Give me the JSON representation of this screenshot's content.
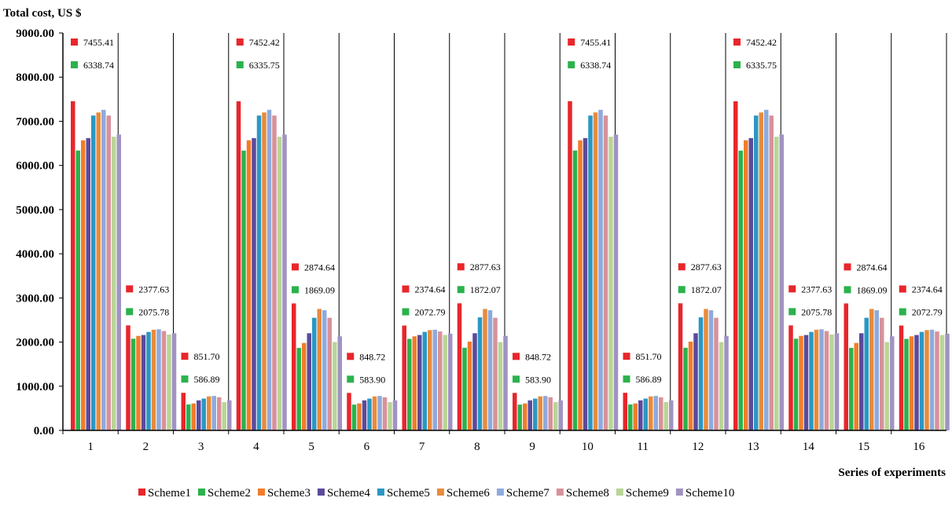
{
  "chart_data": {
    "type": "bar",
    "ylabel": "Total cost, US $",
    "xlabel": "Series of experiments",
    "ylim": [
      0,
      9000
    ],
    "yticks": [
      "0.00",
      "1000.00",
      "2000.00",
      "3000.00",
      "4000.00",
      "5000.00",
      "6000.00",
      "7000.00",
      "8000.00",
      "9000.00"
    ],
    "categories": [
      "1",
      "2",
      "3",
      "4",
      "5",
      "6",
      "7",
      "8",
      "9",
      "10",
      "11",
      "12",
      "13",
      "14",
      "15",
      "16"
    ],
    "grid": "vertical separators between series",
    "legend_position": "bottom",
    "series": [
      {
        "name": "Scheme1",
        "color": "#e8262b",
        "values": [
          7455.41,
          2377.63,
          851.7,
          7452.42,
          2874.64,
          848.72,
          2374.64,
          2877.63,
          848.72,
          7455.41,
          851.7,
          2877.63,
          7452.42,
          2377.63,
          2874.64,
          2374.64
        ]
      },
      {
        "name": "Scheme2",
        "color": "#2bb24c",
        "values": [
          6338.74,
          2075.78,
          586.89,
          6335.75,
          1869.09,
          583.9,
          2072.79,
          1872.07,
          583.9,
          6338.74,
          586.89,
          1872.07,
          6335.75,
          2075.78,
          1869.09,
          2072.79
        ]
      },
      {
        "name": "Scheme3",
        "color": "#f07d2a",
        "values": [
          6570,
          2140,
          610,
          6570,
          1980,
          610,
          2130,
          2010,
          610,
          6570,
          610,
          2010,
          6570,
          2140,
          1980,
          2130
        ]
      },
      {
        "name": "Scheme4",
        "color": "#5b4a9b",
        "values": [
          6620,
          2160,
          680,
          6620,
          2200,
          680,
          2160,
          2200,
          680,
          6620,
          680,
          2200,
          6620,
          2160,
          2200,
          2160
        ]
      },
      {
        "name": "Scheme5",
        "color": "#2a98c4",
        "values": [
          7130,
          2230,
          720,
          7130,
          2550,
          720,
          2230,
          2560,
          720,
          7130,
          720,
          2560,
          7130,
          2230,
          2550,
          2230
        ]
      },
      {
        "name": "Scheme6",
        "color": "#e88b3c",
        "values": [
          7200,
          2280,
          770,
          7200,
          2750,
          770,
          2270,
          2750,
          770,
          7200,
          770,
          2750,
          7200,
          2280,
          2750,
          2270
        ]
      },
      {
        "name": "Scheme7",
        "color": "#8eaadc",
        "values": [
          7260,
          2290,
          780,
          7260,
          2720,
          780,
          2280,
          2720,
          780,
          7260,
          780,
          2720,
          7260,
          2290,
          2720,
          2280
        ]
      },
      {
        "name": "Scheme8",
        "color": "#d8919a",
        "values": [
          7130,
          2250,
          750,
          7130,
          2550,
          750,
          2240,
          2550,
          750,
          7130,
          750,
          2550,
          7130,
          2250,
          2550,
          2240
        ]
      },
      {
        "name": "Scheme9",
        "color": "#b9d596",
        "values": [
          6650,
          2170,
          640,
          6650,
          2000,
          640,
          2160,
          2000,
          640,
          6650,
          640,
          2000,
          6650,
          2170,
          2000,
          2160
        ]
      },
      {
        "name": "Scheme10",
        "color": "#a093c2",
        "values": [
          6700,
          2200,
          680,
          6700,
          2130,
          680,
          2190,
          2140,
          680,
          6700,
          680,
          2140,
          6700,
          2200,
          2130,
          2190
        ]
      }
    ],
    "annotations": [
      {
        "category": "1",
        "top": "7455.41",
        "bottom": "6338.74"
      },
      {
        "category": "2",
        "top": "2377.63",
        "bottom": "2075.78"
      },
      {
        "category": "3",
        "top": "851.70",
        "bottom": "586.89"
      },
      {
        "category": "4",
        "top": "7452.42",
        "bottom": "6335.75"
      },
      {
        "category": "5",
        "top": "2874.64",
        "bottom": "1869.09"
      },
      {
        "category": "6",
        "top": "848.72",
        "bottom": "583.90"
      },
      {
        "category": "7",
        "top": "2374.64",
        "bottom": "2072.79"
      },
      {
        "category": "8",
        "top": "2877.63",
        "bottom": "1872.07"
      },
      {
        "category": "9",
        "top": "848.72",
        "bottom": "583.90"
      },
      {
        "category": "10",
        "top": "7455.41",
        "bottom": "6338.74"
      },
      {
        "category": "11",
        "top": "851.70",
        "bottom": "586.89"
      },
      {
        "category": "12",
        "top": "2877.63",
        "bottom": "1872.07"
      },
      {
        "category": "13",
        "top": "7452.42",
        "bottom": "6335.75"
      },
      {
        "category": "14",
        "top": "2377.63",
        "bottom": "2075.78"
      },
      {
        "category": "15",
        "top": "2874.64",
        "bottom": "1869.09"
      },
      {
        "category": "16",
        "top": "2374.64",
        "bottom": "2072.79"
      }
    ]
  }
}
